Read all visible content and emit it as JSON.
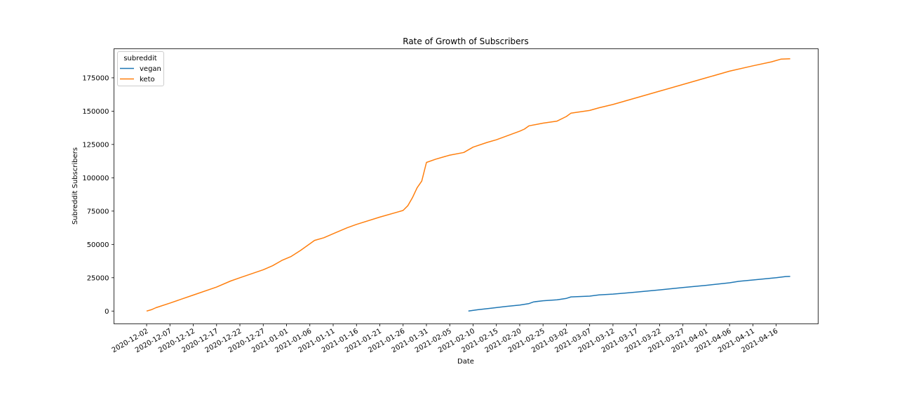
{
  "chart_data": {
    "type": "line",
    "title": "Rate of Growth of Subscribers",
    "xlabel": "Date",
    "ylabel": "Subreddit Subscribers",
    "x_range": [
      "2020-11-25",
      "2021-04-25"
    ],
    "ylim": [
      -9600,
      196800
    ],
    "y_ticks": [
      0,
      25000,
      50000,
      75000,
      100000,
      125000,
      150000,
      175000
    ],
    "x_ticks": [
      "2020-12-02",
      "2020-12-07",
      "2020-12-12",
      "2020-12-17",
      "2020-12-22",
      "2020-12-27",
      "2021-01-01",
      "2021-01-06",
      "2021-01-11",
      "2021-01-16",
      "2021-01-21",
      "2021-01-26",
      "2021-01-31",
      "2021-02-05",
      "2021-02-10",
      "2021-02-15",
      "2021-02-20",
      "2021-02-25",
      "2021-03-02",
      "2021-03-07",
      "2021-03-12",
      "2021-03-17",
      "2021-03-22",
      "2021-03-27",
      "2021-04-01",
      "2021-04-06",
      "2021-04-11",
      "2021-04-16"
    ],
    "legend": {
      "title": "subreddit",
      "position": "upper-left"
    },
    "grid": false,
    "series": [
      {
        "name": "vegan",
        "color": "#1f77b4",
        "points": [
          [
            "2021-02-09",
            0
          ],
          [
            "2021-02-11",
            1000
          ],
          [
            "2021-02-14",
            2200
          ],
          [
            "2021-02-17",
            3400
          ],
          [
            "2021-02-20",
            4500
          ],
          [
            "2021-02-22",
            5600
          ],
          [
            "2021-02-23",
            6900
          ],
          [
            "2021-02-25",
            7700
          ],
          [
            "2021-02-28",
            8400
          ],
          [
            "2021-03-02",
            9500
          ],
          [
            "2021-03-03",
            10600
          ],
          [
            "2021-03-07",
            11200
          ],
          [
            "2021-03-09",
            12100
          ],
          [
            "2021-03-12",
            12700
          ],
          [
            "2021-03-17",
            14200
          ],
          [
            "2021-03-22",
            15900
          ],
          [
            "2021-03-27",
            17600
          ],
          [
            "2021-04-01",
            19300
          ],
          [
            "2021-04-06",
            21200
          ],
          [
            "2021-04-08",
            22300
          ],
          [
            "2021-04-11",
            23300
          ],
          [
            "2021-04-16",
            25000
          ],
          [
            "2021-04-18",
            25900
          ],
          [
            "2021-04-19",
            26000
          ]
        ]
      },
      {
        "name": "keto",
        "color": "#ff7f0e",
        "points": [
          [
            "2020-12-02",
            0
          ],
          [
            "2020-12-03",
            1000
          ],
          [
            "2020-12-04",
            2500
          ],
          [
            "2020-12-07",
            6000
          ],
          [
            "2020-12-12",
            12000
          ],
          [
            "2020-12-17",
            18000
          ],
          [
            "2020-12-20",
            22500
          ],
          [
            "2020-12-22",
            25000
          ],
          [
            "2020-12-27",
            31000
          ],
          [
            "2020-12-29",
            34000
          ],
          [
            "2020-12-31",
            38000
          ],
          [
            "2021-01-02",
            41000
          ],
          [
            "2021-01-04",
            45500
          ],
          [
            "2021-01-06",
            50500
          ],
          [
            "2021-01-07",
            53000
          ],
          [
            "2021-01-09",
            55000
          ],
          [
            "2021-01-11",
            58000
          ],
          [
            "2021-01-14",
            62500
          ],
          [
            "2021-01-16",
            65000
          ],
          [
            "2021-01-21",
            70500
          ],
          [
            "2021-01-25",
            74500
          ],
          [
            "2021-01-26",
            75500
          ],
          [
            "2021-01-27",
            79000
          ],
          [
            "2021-01-28",
            85000
          ],
          [
            "2021-01-29",
            92500
          ],
          [
            "2021-01-30",
            97500
          ],
          [
            "2021-01-31",
            111500
          ],
          [
            "2021-02-02",
            114000
          ],
          [
            "2021-02-05",
            117000
          ],
          [
            "2021-02-08",
            119000
          ],
          [
            "2021-02-10",
            123000
          ],
          [
            "2021-02-13",
            126500
          ],
          [
            "2021-02-15",
            128500
          ],
          [
            "2021-02-20",
            135000
          ],
          [
            "2021-02-21",
            136500
          ],
          [
            "2021-02-22",
            139000
          ],
          [
            "2021-02-25",
            141000
          ],
          [
            "2021-02-28",
            142500
          ],
          [
            "2021-03-02",
            146000
          ],
          [
            "2021-03-03",
            148500
          ],
          [
            "2021-03-07",
            150500
          ],
          [
            "2021-03-09",
            152500
          ],
          [
            "2021-03-12",
            155000
          ],
          [
            "2021-03-17",
            160000
          ],
          [
            "2021-03-22",
            165000
          ],
          [
            "2021-03-27",
            170000
          ],
          [
            "2021-04-01",
            175000
          ],
          [
            "2021-04-06",
            180000
          ],
          [
            "2021-04-11",
            184000
          ],
          [
            "2021-04-15",
            187000
          ],
          [
            "2021-04-17",
            189000
          ],
          [
            "2021-04-19",
            189300
          ]
        ]
      }
    ]
  }
}
